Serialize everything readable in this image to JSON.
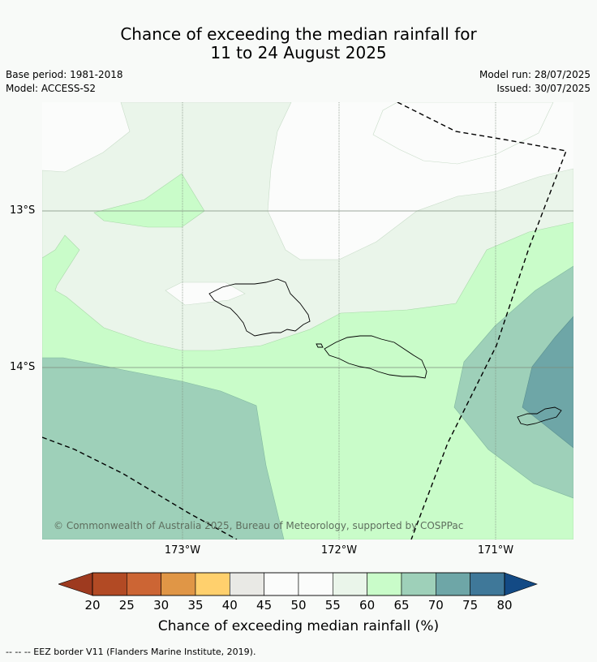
{
  "title_line1": "Chance of exceeding the median rainfall for",
  "title_line2": "11 to 24 August 2025",
  "meta_left": [
    "Base period: 1981-2018",
    "Model: ACCESS-S2"
  ],
  "meta_right": [
    "Model run: 28/07/2025",
    "Issued: 30/07/2025"
  ],
  "map": {
    "lat_labels": [
      "13°S",
      "14°S"
    ],
    "lon_labels": [
      "173°W",
      "172°W",
      "171°W"
    ],
    "copyright": "© Commonwealth of Australia 2025, Bureau of Meteorology, supported by COSPPac"
  },
  "colorbar": {
    "ticks": [
      "20",
      "25",
      "30",
      "35",
      "40",
      "45",
      "50",
      "55",
      "60",
      "65",
      "70",
      "75",
      "80"
    ],
    "colors": [
      "#9e3a1f",
      "#b24a24",
      "#cc6534",
      "#e09646",
      "#ffd06d",
      "#e9e9e5",
      "#fbfcfb",
      "#fbfcfb",
      "#eaf5ea",
      "#c9fcc9",
      "#9ed0b9",
      "#6ea6a7",
      "#3f7899",
      "#134a85"
    ],
    "label": "Chance of exceeding median rainfall (%)"
  },
  "footnote": "--  --  -- EEZ border V11 (Flanders Marine Institute, 2019)."
}
